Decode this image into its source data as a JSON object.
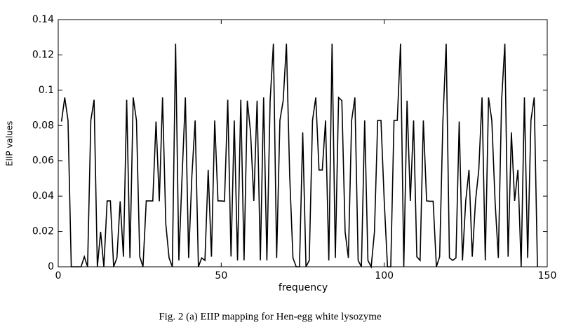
{
  "chart_data": {
    "type": "line",
    "caption": "Fig. 2 (a)  EIIP mapping for Hen-egg  white lysozyme",
    "xlabel": "frequency",
    "ylabel": "EIIP values",
    "color": "#000000",
    "x": [
      1,
      2,
      3,
      4,
      5,
      6,
      7,
      8,
      9,
      10,
      11,
      12,
      13,
      14,
      15,
      16,
      17,
      18,
      19,
      20,
      21,
      22,
      23,
      24,
      25,
      26,
      27,
      28,
      29,
      30,
      31,
      32,
      33,
      34,
      35,
      36,
      37,
      38,
      39,
      40,
      41,
      42,
      43,
      44,
      45,
      46,
      47,
      48,
      49,
      50,
      51,
      52,
      53,
      54,
      55,
      56,
      57,
      58,
      59,
      60,
      61,
      62,
      63,
      64,
      65,
      66,
      67,
      68,
      69,
      70,
      71,
      72,
      73,
      74,
      75,
      76,
      77,
      78,
      79,
      80,
      81,
      82,
      83,
      84,
      85,
      86,
      87,
      88,
      89,
      90,
      91,
      92,
      93,
      94,
      95,
      96,
      97,
      98,
      99,
      100,
      101,
      102,
      103,
      104,
      105,
      106,
      107,
      108,
      109,
      110,
      111,
      112,
      113,
      114,
      115,
      116,
      117,
      118,
      119,
      120,
      121,
      122,
      123,
      124,
      125,
      126,
      127,
      128,
      129,
      130,
      131,
      132,
      133,
      134,
      135,
      136,
      137,
      138,
      139,
      140,
      141,
      142,
      143,
      144,
      145,
      146,
      147
    ],
    "values": [
      0.0823,
      0.0959,
      0.0829,
      0,
      0,
      0,
      0,
      0.0057,
      0,
      0.0829,
      0.0946,
      0,
      0.0198,
      0,
      0.0373,
      0.0373,
      0,
      0.005,
      0.0371,
      0.0057,
      0.0946,
      0.005,
      0.0959,
      0.0829,
      0.0058,
      0,
      0.0373,
      0.0373,
      0.0373,
      0.0823,
      0.0371,
      0.0959,
      0.0242,
      0.005,
      0,
      0.1263,
      0.0036,
      0.0516,
      0.0959,
      0.005,
      0.0516,
      0.0829,
      0,
      0.005,
      0.0036,
      0.0548,
      0.0057,
      0.0829,
      0.0373,
      0.0373,
      0.0371,
      0.0946,
      0.0058,
      0.0829,
      0.0036,
      0.0946,
      0.0036,
      0.0941,
      0.0761,
      0.0373,
      0.0941,
      0.0036,
      0.0959,
      0.0036,
      0.0941,
      0.1263,
      0.005,
      0.0829,
      0.0941,
      0.1263,
      0.0516,
      0.005,
      0,
      0,
      0.0761,
      0,
      0.0036,
      0.0829,
      0.0959,
      0.0548,
      0.0548,
      0.0829,
      0.0036,
      0.1263,
      0.005,
      0.0959,
      0.0941,
      0.0198,
      0.005,
      0.0829,
      0.0959,
      0.0036,
      0,
      0.0829,
      0.0036,
      0,
      0.0198,
      0.0829,
      0.0829,
      0.0373,
      0,
      0,
      0.0829,
      0.0829,
      0.1263,
      0,
      0.0941,
      0.0373,
      0.0829,
      0.0057,
      0.0036,
      0.0829,
      0.0373,
      0.0371,
      0.0371,
      0,
      0.0057,
      0.0829,
      0.1263,
      0.005,
      0.0036,
      0.005,
      0.0823,
      0.0036,
      0.0373,
      0.0548,
      0.0057,
      0.0373,
      0.0548,
      0.0959,
      0.0036,
      0.0959,
      0.0829,
      0.0371,
      0.005,
      0.0941,
      0.1263,
      0.0057,
      0.0761,
      0.0373,
      0.0548,
      0,
      0.0959,
      0.005,
      0.0829,
      0.0959,
      0
    ],
    "xlim": [
      0,
      150
    ],
    "xticks": [
      0,
      50,
      100,
      150
    ],
    "ylim": [
      0,
      0.14
    ],
    "yticks": [
      0,
      0.02,
      0.04,
      0.06,
      0.08,
      0.1,
      0.12,
      0.14
    ]
  }
}
